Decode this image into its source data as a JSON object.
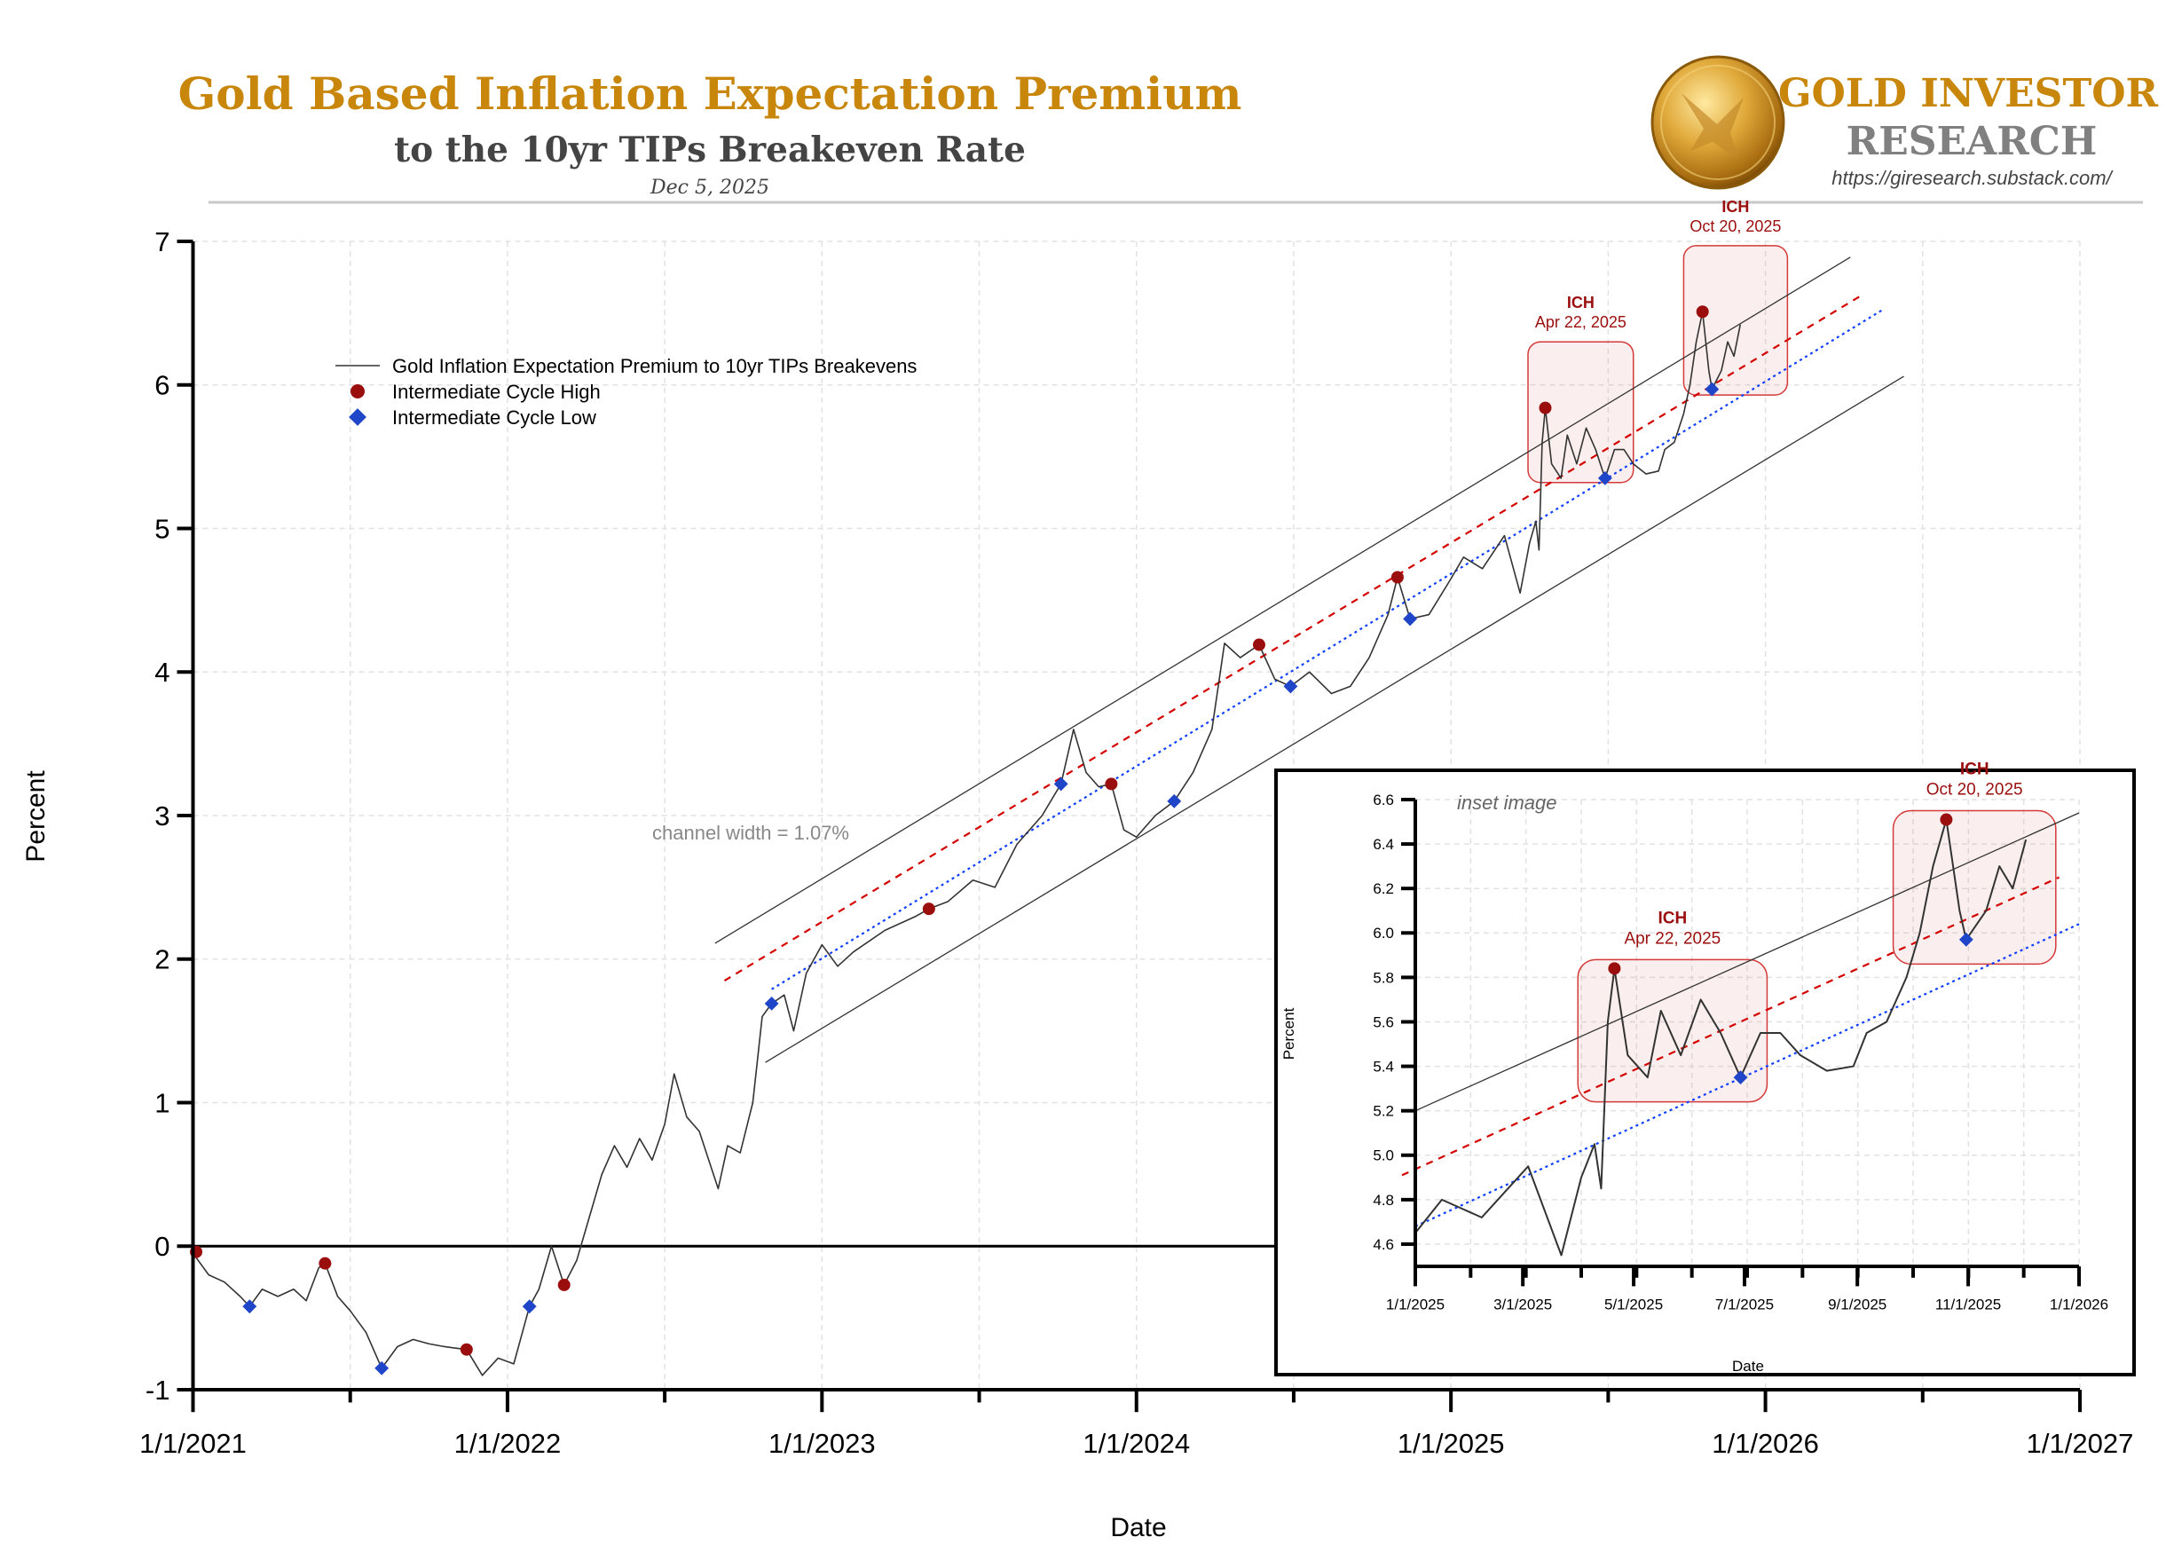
{
  "header": {
    "title": "Gold Based Inflation Expectation Premium",
    "subtitle": "to the 10yr TIPs Breakeven Rate",
    "date": "Dec 5, 2025",
    "brand_line1": "GOLD INVESTOR",
    "brand_line2": "RESEARCH",
    "brand_url": "https://giresearch.substack.com/",
    "logo_icon": "gold-eagle-coin"
  },
  "colors": {
    "title": "#c8860a",
    "ich": "#9b0e0e",
    "icl": "#1f45c8",
    "series": "#333333",
    "brand_gray": "#808080"
  },
  "chart_data": [
    {
      "type": "line",
      "title": "Gold Based Inflation Expectation Premium to the 10yr TIPs Breakeven Rate",
      "xlabel": "Date",
      "ylabel": "Percent",
      "xlim": [
        2021.0,
        2027.0
      ],
      "ylim": [
        -1,
        7
      ],
      "grid": true,
      "legend_position": "top-left",
      "x_ticks": [
        {
          "v": 2021,
          "label": "1/1/2021"
        },
        {
          "v": 2022,
          "label": "1/1/2022"
        },
        {
          "v": 2023,
          "label": "1/1/2023"
        },
        {
          "v": 2024,
          "label": "1/1/2024"
        },
        {
          "v": 2025,
          "label": "1/1/2025"
        },
        {
          "v": 2026,
          "label": "1/1/2026"
        },
        {
          "v": 2027,
          "label": "1/1/2027"
        }
      ],
      "y_ticks": [
        "-1",
        "0",
        "1",
        "2",
        "3",
        "4",
        "5",
        "6",
        "7"
      ],
      "legend": [
        "Gold Inflation Expectation Premium to 10yr TIPs Breakevens",
        "Intermediate Cycle High",
        "Intermediate Cycle Low"
      ],
      "annotation": "channel width = 1.07%",
      "series": [
        {
          "name": "Gold Inflation Expectation Premium to 10yr TIPs Breakevens",
          "x_unit": "decimal year",
          "points": [
            [
              2021.0,
              -0.05
            ],
            [
              2021.05,
              -0.2
            ],
            [
              2021.1,
              -0.25
            ],
            [
              2021.15,
              -0.35
            ],
            [
              2021.18,
              -0.42
            ],
            [
              2021.22,
              -0.3
            ],
            [
              2021.27,
              -0.35
            ],
            [
              2021.32,
              -0.3
            ],
            [
              2021.36,
              -0.38
            ],
            [
              2021.4,
              -0.15
            ],
            [
              2021.42,
              -0.12
            ],
            [
              2021.46,
              -0.35
            ],
            [
              2021.5,
              -0.45
            ],
            [
              2021.55,
              -0.6
            ],
            [
              2021.6,
              -0.85
            ],
            [
              2021.65,
              -0.7
            ],
            [
              2021.7,
              -0.65
            ],
            [
              2021.75,
              -0.68
            ],
            [
              2021.8,
              -0.7
            ],
            [
              2021.87,
              -0.72
            ],
            [
              2021.92,
              -0.9
            ],
            [
              2021.97,
              -0.78
            ],
            [
              2022.02,
              -0.82
            ],
            [
              2022.07,
              -0.42
            ],
            [
              2022.1,
              -0.3
            ],
            [
              2022.14,
              0.0
            ],
            [
              2022.18,
              -0.27
            ],
            [
              2022.22,
              -0.1
            ],
            [
              2022.26,
              0.2
            ],
            [
              2022.3,
              0.5
            ],
            [
              2022.34,
              0.7
            ],
            [
              2022.38,
              0.55
            ],
            [
              2022.42,
              0.75
            ],
            [
              2022.46,
              0.6
            ],
            [
              2022.5,
              0.85
            ],
            [
              2022.53,
              1.2
            ],
            [
              2022.57,
              0.9
            ],
            [
              2022.61,
              0.8
            ],
            [
              2022.64,
              0.6
            ],
            [
              2022.67,
              0.4
            ],
            [
              2022.7,
              0.7
            ],
            [
              2022.74,
              0.65
            ],
            [
              2022.78,
              1.0
            ],
            [
              2022.81,
              1.6
            ],
            [
              2022.84,
              1.69
            ],
            [
              2022.88,
              1.75
            ],
            [
              2022.91,
              1.5
            ],
            [
              2022.95,
              1.9
            ],
            [
              2023.0,
              2.1
            ],
            [
              2023.05,
              1.95
            ],
            [
              2023.1,
              2.05
            ],
            [
              2023.2,
              2.2
            ],
            [
              2023.3,
              2.3
            ],
            [
              2023.34,
              2.35
            ],
            [
              2023.4,
              2.4
            ],
            [
              2023.48,
              2.55
            ],
            [
              2023.55,
              2.5
            ],
            [
              2023.62,
              2.8
            ],
            [
              2023.7,
              3.0
            ],
            [
              2023.76,
              3.22
            ],
            [
              2023.8,
              3.6
            ],
            [
              2023.84,
              3.3
            ],
            [
              2023.88,
              3.2
            ],
            [
              2023.92,
              3.22
            ],
            [
              2023.96,
              2.9
            ],
            [
              2024.0,
              2.85
            ],
            [
              2024.06,
              3.0
            ],
            [
              2024.12,
              3.1
            ],
            [
              2024.18,
              3.3
            ],
            [
              2024.24,
              3.6
            ],
            [
              2024.28,
              4.2
            ],
            [
              2024.33,
              4.1
            ],
            [
              2024.39,
              4.19
            ],
            [
              2024.44,
              3.95
            ],
            [
              2024.49,
              3.9
            ],
            [
              2024.55,
              4.0
            ],
            [
              2024.62,
              3.85
            ],
            [
              2024.68,
              3.9
            ],
            [
              2024.74,
              4.1
            ],
            [
              2024.8,
              4.4
            ],
            [
              2024.83,
              4.66
            ],
            [
              2024.87,
              4.37
            ],
            [
              2024.93,
              4.4
            ],
            [
              2025.0,
              4.65
            ],
            [
              2025.04,
              4.8
            ],
            [
              2025.1,
              4.72
            ],
            [
              2025.17,
              4.95
            ],
            [
              2025.22,
              4.55
            ],
            [
              2025.25,
              4.9
            ],
            [
              2025.27,
              5.05
            ],
            [
              2025.28,
              4.85
            ],
            [
              2025.29,
              5.6
            ],
            [
              2025.3,
              5.84
            ],
            [
              2025.32,
              5.45
            ],
            [
              2025.35,
              5.35
            ],
            [
              2025.37,
              5.65
            ],
            [
              2025.4,
              5.45
            ],
            [
              2025.43,
              5.7
            ],
            [
              2025.46,
              5.55
            ],
            [
              2025.49,
              5.35
            ],
            [
              2025.52,
              5.55
            ],
            [
              2025.55,
              5.55
            ],
            [
              2025.58,
              5.45
            ],
            [
              2025.62,
              5.38
            ],
            [
              2025.66,
              5.4
            ],
            [
              2025.68,
              5.55
            ],
            [
              2025.71,
              5.6
            ],
            [
              2025.74,
              5.8
            ],
            [
              2025.76,
              6.0
            ],
            [
              2025.78,
              6.3
            ],
            [
              2025.8,
              6.51
            ],
            [
              2025.82,
              6.1
            ],
            [
              2025.83,
              5.97
            ],
            [
              2025.86,
              6.1
            ],
            [
              2025.88,
              6.3
            ],
            [
              2025.9,
              6.2
            ],
            [
              2025.92,
              6.42
            ]
          ]
        }
      ],
      "ich": [
        [
          2021.01,
          -0.04
        ],
        [
          2021.42,
          -0.12
        ],
        [
          2021.87,
          -0.72
        ],
        [
          2022.18,
          -0.27
        ],
        [
          2023.34,
          2.35
        ],
        [
          2023.92,
          3.22
        ],
        [
          2024.39,
          4.19
        ],
        [
          2024.83,
          4.66
        ],
        [
          2025.3,
          5.84
        ],
        [
          2025.8,
          6.51
        ]
      ],
      "icl": [
        [
          2021.18,
          -0.42
        ],
        [
          2021.6,
          -0.85
        ],
        [
          2022.07,
          -0.42
        ],
        [
          2022.84,
          1.69
        ],
        [
          2023.76,
          3.22
        ],
        [
          2024.12,
          3.1
        ],
        [
          2024.49,
          3.9
        ],
        [
          2024.87,
          4.37
        ],
        [
          2025.49,
          5.35
        ],
        [
          2025.83,
          5.97
        ]
      ],
      "channel": {
        "upper": [
          [
            2022.66,
            2.11
          ],
          [
            2026.27,
            6.89
          ]
        ],
        "lower": [
          [
            2022.82,
            1.28
          ],
          [
            2026.44,
            6.06
          ]
        ],
        "red_dashed": [
          [
            2022.69,
            1.85
          ],
          [
            2026.31,
            6.63
          ]
        ],
        "blue_dotted": [
          [
            2022.84,
            1.79
          ],
          [
            2026.37,
            6.52
          ]
        ]
      },
      "highlights": [
        {
          "label": "ICH",
          "date": "Apr 22, 2025",
          "x": [
            2025.245,
            2025.58
          ],
          "y": [
            5.32,
            6.3
          ]
        },
        {
          "label": "ICH",
          "date": "Oct 20, 2025",
          "x": [
            2025.74,
            2026.07
          ],
          "y": [
            5.93,
            6.97
          ]
        }
      ]
    },
    {
      "type": "line",
      "title": "inset image",
      "xlabel": "Date",
      "ylabel": "Percent",
      "xlim": [
        2025.0,
        2026.0
      ],
      "ylim": [
        4.5,
        6.6
      ],
      "grid": true,
      "x_ticks": [
        {
          "v": 2025.0,
          "label": "1/1/2025"
        },
        {
          "v": 2025.162,
          "label": "3/1/2025"
        },
        {
          "v": 2025.329,
          "label": "5/1/2025"
        },
        {
          "v": 2025.496,
          "label": "7/1/2025"
        },
        {
          "v": 2025.666,
          "label": "9/1/2025"
        },
        {
          "v": 2025.833,
          "label": "11/1/2025"
        },
        {
          "v": 2026.0,
          "label": "1/1/2026"
        }
      ],
      "y_ticks": [
        "4.6",
        "4.8",
        "5.0",
        "5.2",
        "5.4",
        "5.6",
        "5.8",
        "6.0",
        "6.2",
        "6.4",
        "6.6"
      ],
      "channel": {
        "upper": [
          [
            2025.0,
            5.2
          ],
          [
            2026.0,
            6.54
          ]
        ],
        "red_dashed": [
          [
            2024.98,
            4.91
          ],
          [
            2025.97,
            6.25
          ]
        ],
        "blue_dotted": [
          [
            2025.0,
            4.68
          ],
          [
            2026.0,
            6.04
          ]
        ]
      },
      "highlights": [
        {
          "label": "ICH",
          "date": "Apr 22, 2025",
          "x": [
            2025.245,
            2025.53
          ],
          "y": [
            5.24,
            5.88
          ]
        },
        {
          "label": "ICH",
          "date": "Oct 20, 2025",
          "x": [
            2025.72,
            2025.965
          ],
          "y": [
            5.86,
            6.55
          ]
        }
      ]
    }
  ]
}
